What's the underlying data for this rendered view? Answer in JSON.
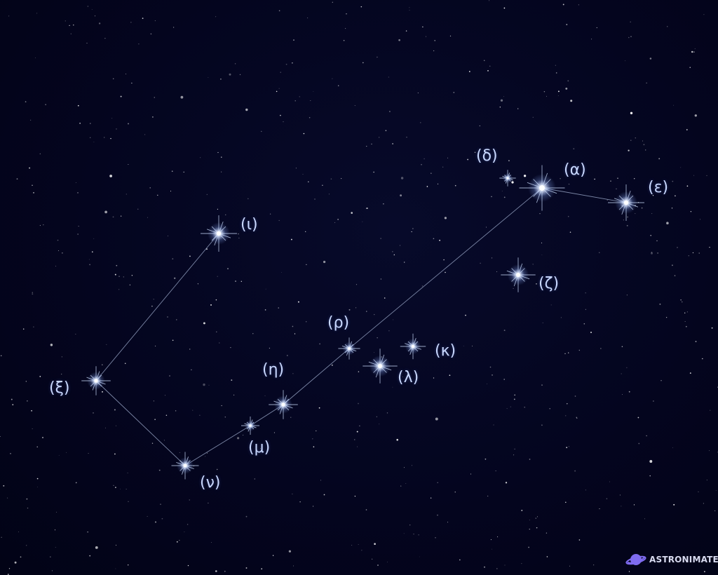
{
  "scene": {
    "background_color": "#03041c",
    "line_color": "#9aa8c8",
    "label_color": "#c9d8ff",
    "star_color": "#ffffff",
    "star_glow_color": "#8fb0ff"
  },
  "stars": {
    "iota": "(ι)",
    "alpha": "(α)",
    "delta": "(δ)",
    "epsilon": "(ε)",
    "zeta": "(ζ)",
    "rho": "(ρ)",
    "kappa": "(κ)",
    "lambda": "(λ)",
    "eta": "(η)",
    "xi": "(ξ)",
    "mu": "(μ)",
    "nu": "(ν)"
  },
  "watermark": {
    "text": "ASTRONIMATE",
    "icon": "planet-icon",
    "color": "#7f6cf0"
  }
}
